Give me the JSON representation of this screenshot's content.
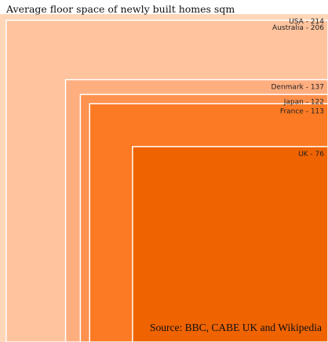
{
  "chart_data": {
    "type": "nested-squares",
    "title": "Average floor space of newly built homes sqm",
    "source": "Source: BBC, CABE UK and Wikipedia",
    "unit": "sqm",
    "items": [
      {
        "name": "USA",
        "value": 214,
        "label": "USA - 214",
        "color": "#ffd7b8"
      },
      {
        "name": "Australia",
        "value": 206,
        "label": "Australia - 206",
        "color": "#ffc39d"
      },
      {
        "name": "Denmark",
        "value": 137,
        "label": "Denmark - 137",
        "color": "#ffae80"
      },
      {
        "name": "Japan",
        "value": 122,
        "label": "Japan - 122",
        "color": "#ff924e"
      },
      {
        "name": "France",
        "value": 113,
        "label": "France - 113",
        "color": "#fc7a24"
      },
      {
        "name": "UK",
        "value": 76,
        "label": "UK - 76",
        "color": "#ef6300"
      }
    ]
  }
}
